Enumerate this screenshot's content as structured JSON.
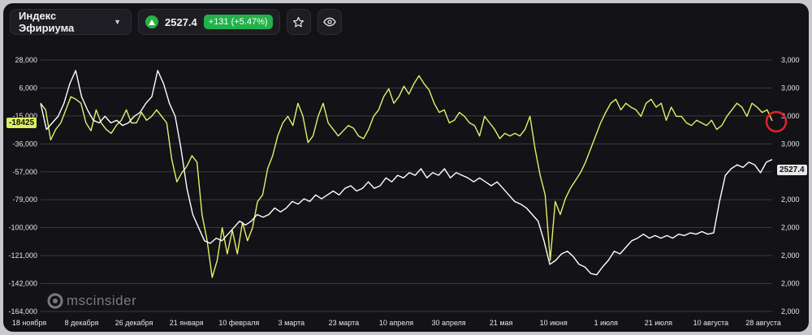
{
  "header": {
    "title": "Индекс Эфириума",
    "price": "2527.4",
    "change": "+131 (+5.47%)",
    "star_icon": "star-icon",
    "eye_icon": "eye-icon"
  },
  "watermark": {
    "text": "mscinsider"
  },
  "chart_data": {
    "type": "line",
    "left_axis": {
      "ticks": [
        "28,000",
        "6,000",
        "-15,000",
        "-36,000",
        "-57,000",
        "-79,000",
        "-100,000",
        "-121,000",
        "-142,000",
        "-164,000"
      ],
      "range": [
        -164000,
        28000
      ]
    },
    "right_axis": {
      "ticks": [
        "3,000",
        "3,000",
        "3,000",
        "3,000",
        "3,000",
        "2,000",
        "2,000",
        "2,000",
        "2,000",
        "2,000"
      ]
    },
    "x_ticks": [
      "18 ноября",
      "8 декабря",
      "26 декабря",
      "21 января",
      "10 февраля",
      "3 марта",
      "23 марта",
      "10 апреля",
      "30 апреля",
      "21 мая",
      "10 июня",
      "1 июля",
      "21 июля",
      "10 августа",
      "28 августа"
    ],
    "last_left_label": "-18425",
    "last_right_label": "2527.4",
    "colors": {
      "yellow": "#e4f06a",
      "white": "#ffffff",
      "grid": "#3b3b42",
      "marker": "#e0242b"
    },
    "series": [
      {
        "color": "#e4f06a",
        "axis": "left",
        "values": [
          -5000,
          -10000,
          -33000,
          -25000,
          -20000,
          -10000,
          0,
          -2000,
          -5000,
          -20000,
          -26000,
          -10000,
          -20000,
          -25000,
          -28000,
          -22000,
          -18000,
          -10000,
          -20000,
          -20000,
          -12000,
          -18000,
          -15000,
          -10000,
          -15000,
          -20000,
          -48000,
          -65000,
          -58000,
          -53000,
          -45000,
          -50000,
          -90000,
          -110000,
          -138000,
          -125000,
          -100000,
          -120000,
          -102000,
          -120000,
          -96000,
          -110000,
          -100000,
          -80000,
          -75000,
          -55000,
          -45000,
          -30000,
          -20000,
          -15000,
          -22000,
          -5000,
          -15000,
          -35000,
          -30000,
          -15000,
          -5000,
          -20000,
          -25000,
          -30000,
          -26000,
          -22000,
          -24000,
          -30000,
          -32000,
          -25000,
          -15000,
          -10000,
          0,
          6000,
          -5000,
          0,
          8000,
          2000,
          10000,
          16000,
          10000,
          5000,
          -5000,
          -12000,
          -10000,
          -20000,
          -18000,
          -12000,
          -15000,
          -20000,
          -22000,
          -30000,
          -15000,
          -20000,
          -25000,
          -32000,
          -28000,
          -30000,
          -28000,
          -30000,
          -25000,
          -15000,
          -40000,
          -60000,
          -75000,
          -125000,
          -80000,
          -90000,
          -78000,
          -70000,
          -64000,
          -58000,
          -50000,
          -40000,
          -30000,
          -20000,
          -12000,
          -5000,
          -2000,
          -10000,
          -5000,
          -8000,
          -10000,
          -15000,
          -5000,
          -2000,
          -8000,
          -5000,
          -18000,
          -8000,
          -15000,
          -15000,
          -20000,
          -22000,
          -18000,
          -20000,
          -22000,
          -18000,
          -25000,
          -22000,
          -15000,
          -10000,
          -5000,
          -8000,
          -15000,
          -5000,
          -8000,
          -12000,
          -10000,
          -18425
        ]
      },
      {
        "color": "#ffffff",
        "axis": "left",
        "values": [
          -5000,
          -25000,
          -20000,
          -15000,
          -5000,
          10000,
          20000,
          0,
          -10000,
          -18000,
          -20000,
          -15000,
          -20000,
          -18000,
          -22000,
          -20000,
          -15000,
          -12000,
          -5000,
          0,
          20000,
          10000,
          -5000,
          -15000,
          -40000,
          -70000,
          -90000,
          -100000,
          -110000,
          -112000,
          -108000,
          -110000,
          -105000,
          -100000,
          -95000,
          -98000,
          -95000,
          -90000,
          -92000,
          -90000,
          -85000,
          -88000,
          -85000,
          -80000,
          -82000,
          -78000,
          -80000,
          -75000,
          -78000,
          -75000,
          -72000,
          -75000,
          -70000,
          -68000,
          -72000,
          -70000,
          -65000,
          -70000,
          -68000,
          -62000,
          -65000,
          -60000,
          -62000,
          -58000,
          -60000,
          -55000,
          -62000,
          -58000,
          -60000,
          -55000,
          -62000,
          -58000,
          -60000,
          -62000,
          -65000,
          -62000,
          -65000,
          -68000,
          -65000,
          -70000,
          -75000,
          -80000,
          -82000,
          -85000,
          -90000,
          -95000,
          -110000,
          -128000,
          -125000,
          -120000,
          -118000,
          -122000,
          -128000,
          -130000,
          -135000,
          -136000,
          -130000,
          -125000,
          -118000,
          -120000,
          -115000,
          -110000,
          -108000,
          -105000,
          -108000,
          -106000,
          -108000,
          -106000,
          -108000,
          -105000,
          -106000,
          -104000,
          -105000,
          -103000,
          -105000,
          -104000,
          -80000,
          -60000,
          -55000,
          -52000,
          -54000,
          -50000,
          -52000,
          -58000,
          -50000,
          -48000
        ]
      }
    ],
    "marker": {
      "series": 0,
      "position": "last"
    }
  }
}
